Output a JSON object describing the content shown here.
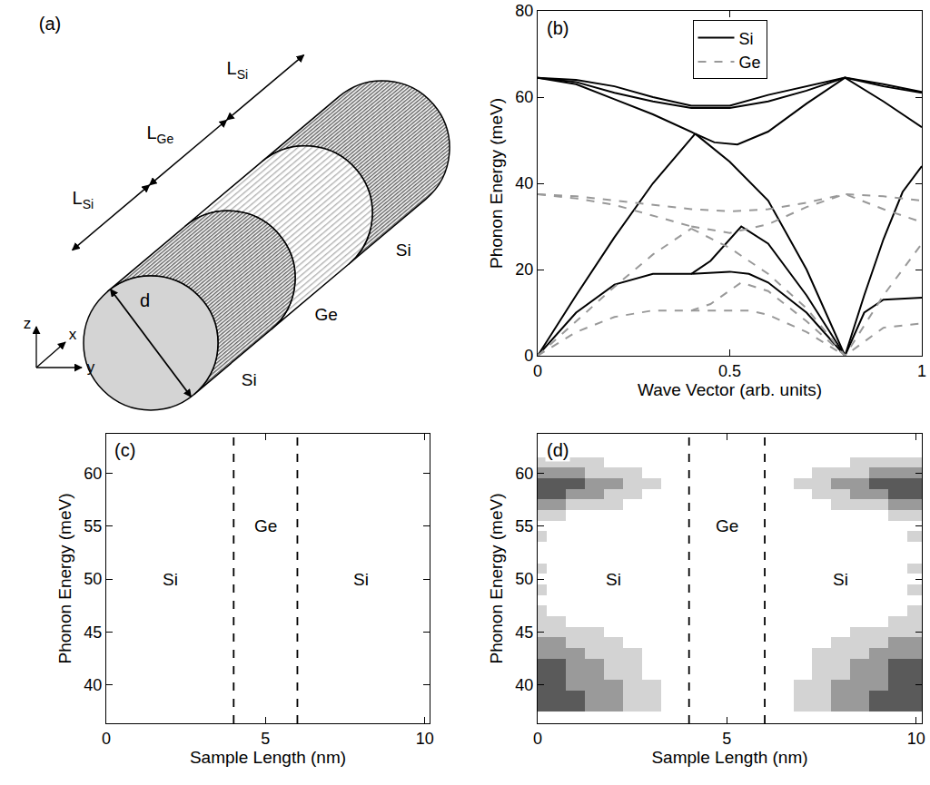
{
  "diagram": {
    "label": "(a)",
    "lengths": [
      {
        "symbol": "L",
        "subscript": "Si"
      },
      {
        "symbol": "L",
        "subscript": "Ge"
      },
      {
        "symbol": "L",
        "subscript": "Si"
      }
    ],
    "diameter": "d",
    "segments": [
      "Si",
      "Ge",
      "Si"
    ],
    "axes": [
      "z",
      "x",
      "y"
    ]
  },
  "chart_data": [
    {
      "type": "line",
      "label": "(b)",
      "xlabel": "Wave Vector (arb. units)",
      "ylabel": "Phonon Energy (meV)",
      "xlim": [
        0,
        1
      ],
      "xticks": [
        0,
        0.5,
        1
      ],
      "ylim": [
        0,
        80
      ],
      "yticks": [
        0,
        20,
        40,
        60,
        80
      ],
      "legend": "upper center",
      "series": [
        {
          "name": "Si",
          "color": "#000000",
          "line_style": "solid",
          "x": [
            0,
            0.1,
            0.2,
            0.3,
            0.4,
            0.5,
            0.6,
            0.7,
            0.8,
            0.9,
            1,
            null,
            0,
            0.1,
            0.2,
            0.3,
            0.4,
            0.5,
            0.6,
            0.7,
            0.8,
            0.9,
            1,
            null,
            0,
            0.1,
            0.2,
            0.3,
            0.41,
            null,
            0,
            0.1,
            0.2,
            0.3,
            0.41,
            null,
            0.41,
            0.46,
            0.52,
            0.6,
            0.7,
            0.8,
            0.9,
            1,
            null,
            0.41,
            0.5,
            0.6,
            0.7,
            0.8,
            0.85,
            0.9,
            0.95,
            1,
            null,
            0,
            0.1,
            0.2,
            0.3,
            0.4,
            0.45,
            0.53,
            0.6,
            0.7,
            0.8,
            0.85,
            0.9,
            1,
            null,
            0.4,
            0.5,
            0.55,
            0.6,
            0.7,
            0.8
          ],
          "values": [
            64.5,
            63.5,
            61,
            59,
            57.5,
            57.5,
            59,
            61.5,
            64.5,
            62.5,
            61,
            null,
            64.5,
            64,
            62.5,
            60,
            58,
            58,
            60.5,
            62.5,
            64.5,
            63,
            61.2,
            null,
            64.5,
            63,
            59.5,
            56,
            51.5,
            null,
            0,
            14,
            27.5,
            40,
            51.5,
            null,
            51.5,
            49.5,
            49,
            52,
            58.5,
            64.5,
            59,
            53,
            null,
            51.5,
            45,
            36,
            20,
            0,
            14,
            27,
            38,
            44,
            null,
            0,
            10,
            16.5,
            19,
            19,
            22,
            30,
            26,
            14,
            0,
            10,
            13,
            13.5,
            null,
            19,
            19.5,
            19,
            17,
            10,
            0
          ]
        },
        {
          "name": "Ge",
          "color": "#999999",
          "line_style": "dashed",
          "x": [
            0,
            0.1,
            0.2,
            0.3,
            0.4,
            0.5,
            0.6,
            0.7,
            0.8,
            0.9,
            1,
            null,
            0,
            0.1,
            0.2,
            0.3,
            0.4,
            null,
            0,
            0.1,
            0.2,
            0.3,
            0.4,
            null,
            0.4,
            0.5,
            0.6,
            0.7,
            0.8,
            0.9,
            1,
            null,
            0.4,
            0.5,
            0.6,
            0.7,
            0.8,
            0.9,
            1,
            null,
            0,
            0.1,
            0.2,
            0.3,
            0.4,
            0.45,
            0.53,
            0.6,
            0.7,
            0.8,
            0.9,
            1,
            null,
            0.4,
            0.5,
            0.55,
            0.6,
            0.7,
            0.8
          ],
          "values": [
            37.5,
            37,
            36,
            35,
            34,
            33.5,
            34,
            35.5,
            37.5,
            37,
            36,
            null,
            37.5,
            36.5,
            35,
            32.5,
            30,
            null,
            0,
            8,
            16,
            23.5,
            29.5,
            null,
            30,
            28.5,
            30.5,
            34.5,
            37.5,
            34,
            31,
            null,
            29.5,
            25,
            19,
            11,
            0,
            14,
            26,
            null,
            0,
            5.5,
            9,
            10.5,
            10.5,
            12,
            17,
            15,
            8,
            0,
            6.5,
            7.5,
            null,
            10.5,
            10.5,
            10.5,
            9.5,
            5.5,
            0
          ]
        }
      ]
    },
    {
      "type": "annotated",
      "label": "(c)",
      "xlabel": "Sample Length (nm)",
      "ylabel": "Phonon Energy (meV)",
      "xlim": [
        0,
        10.15
      ],
      "xticks": [
        0,
        5,
        10
      ],
      "ylim": [
        36.4,
        63.7
      ],
      "yticks": [
        40,
        45,
        50,
        55,
        60
      ],
      "vlines": [
        4,
        6
      ],
      "annotations": [
        {
          "text": "Si",
          "x": 2,
          "y": 50
        },
        {
          "text": "Ge",
          "x": 5,
          "y": 55
        },
        {
          "text": "Si",
          "x": 8,
          "y": 50
        }
      ]
    },
    {
      "type": "heatmap",
      "label": "(d)",
      "xlabel": "Sample Length (nm)",
      "ylabel": "Phonon Energy (meV)",
      "xlim": [
        0,
        10.15
      ],
      "xticks": [
        0,
        5,
        10
      ],
      "ylim": [
        36.4,
        63.7
      ],
      "yticks": [
        40,
        45,
        50,
        55,
        60
      ],
      "vlines": [
        4,
        6
      ],
      "annotations": [
        {
          "text": "Si",
          "x": 2,
          "y": 50
        },
        {
          "text": "Ge",
          "x": 5,
          "y": 55
        },
        {
          "text": "Si",
          "x": 8,
          "y": 50
        }
      ],
      "colors": [
        "#ffffff",
        "#d3d3d3",
        "#9a9a9a",
        "#5a5a5a"
      ],
      "zlim": [
        0,
        3
      ],
      "x": [
        0,
        0.5,
        1,
        1.5,
        2,
        2.5,
        3,
        3.5,
        4,
        4.5,
        5,
        5.5,
        6,
        6.5,
        7,
        7.5,
        8,
        8.5,
        9,
        9.5,
        10
      ],
      "y": [
        38,
        39,
        40,
        41,
        42,
        43,
        44,
        45,
        46,
        47,
        48,
        49,
        50,
        51,
        52,
        53,
        54,
        55,
        56,
        57,
        58,
        59,
        60,
        61,
        62
      ],
      "z": [
        [
          3,
          3,
          3,
          2,
          2,
          1,
          1,
          0,
          0,
          0,
          0,
          0,
          0,
          0,
          1,
          1,
          2,
          2,
          3,
          3,
          3
        ],
        [
          3,
          3,
          3,
          2,
          2,
          1,
          1,
          0,
          0,
          0,
          0,
          0,
          0,
          0,
          1,
          1,
          2,
          2,
          3,
          3,
          3
        ],
        [
          3,
          3,
          2,
          2,
          2,
          1,
          1,
          0,
          0,
          0,
          0,
          0,
          0,
          0,
          1,
          1,
          2,
          2,
          2,
          3,
          3
        ],
        [
          3,
          3,
          2,
          2,
          1,
          1,
          0,
          0,
          0,
          0,
          0,
          0,
          0,
          0,
          0,
          1,
          1,
          2,
          2,
          3,
          3
        ],
        [
          3,
          3,
          2,
          2,
          1,
          1,
          0,
          0,
          0,
          0,
          0,
          0,
          0,
          0,
          0,
          1,
          1,
          2,
          2,
          3,
          3
        ],
        [
          2,
          2,
          2,
          1,
          1,
          1,
          0,
          0,
          0,
          0,
          0,
          0,
          0,
          0,
          0,
          1,
          1,
          1,
          2,
          2,
          2
        ],
        [
          2,
          2,
          1,
          1,
          1,
          0,
          0,
          0,
          0,
          0,
          0,
          0,
          0,
          0,
          0,
          0,
          1,
          1,
          1,
          2,
          2
        ],
        [
          1,
          1,
          1,
          1,
          0,
          0,
          0,
          0,
          0,
          0,
          0,
          0,
          0,
          0,
          0,
          0,
          0,
          1,
          1,
          1,
          1
        ],
        [
          1,
          1,
          0,
          0,
          0,
          0,
          0,
          0,
          0,
          0,
          0,
          0,
          0,
          0,
          0,
          0,
          0,
          0,
          0,
          1,
          1
        ],
        [
          1,
          0,
          0,
          0,
          0,
          0,
          0,
          0,
          0,
          0,
          0,
          0,
          0,
          0,
          0,
          0,
          0,
          0,
          0,
          0,
          1
        ],
        [
          0,
          0,
          0,
          0,
          0,
          0,
          0,
          0,
          0,
          0,
          0,
          0,
          0,
          0,
          0,
          0,
          0,
          0,
          0,
          0,
          0
        ],
        [
          1,
          0,
          0,
          0,
          0,
          0,
          0,
          0,
          0,
          0,
          0,
          0,
          0,
          0,
          0,
          0,
          0,
          0,
          0,
          0,
          1
        ],
        [
          0,
          0,
          0,
          0,
          0,
          0,
          0,
          0,
          0,
          0,
          0,
          0,
          0,
          0,
          0,
          0,
          0,
          0,
          0,
          0,
          0
        ],
        [
          1,
          0,
          0,
          0,
          0,
          0,
          0,
          0,
          0,
          0,
          0,
          0,
          0,
          0,
          0,
          0,
          0,
          0,
          0,
          0,
          1
        ],
        [
          0,
          0,
          0,
          0,
          0,
          0,
          0,
          0,
          0,
          0,
          0,
          0,
          0,
          0,
          0,
          0,
          0,
          0,
          0,
          0,
          0
        ],
        [
          0,
          0,
          0,
          0,
          0,
          0,
          0,
          0,
          0,
          0,
          0,
          0,
          0,
          0,
          0,
          0,
          0,
          0,
          0,
          0,
          0
        ],
        [
          1,
          0,
          0,
          0,
          0,
          0,
          0,
          0,
          0,
          0,
          0,
          0,
          0,
          0,
          0,
          0,
          0,
          0,
          0,
          0,
          1
        ],
        [
          0,
          0,
          0,
          0,
          0,
          0,
          0,
          0,
          0,
          0,
          0,
          0,
          0,
          0,
          0,
          0,
          0,
          0,
          0,
          0,
          0
        ],
        [
          1,
          1,
          0,
          0,
          0,
          0,
          0,
          0,
          0,
          0,
          0,
          0,
          0,
          0,
          0,
          0,
          0,
          0,
          0,
          1,
          1
        ],
        [
          2,
          2,
          1,
          1,
          1,
          0,
          0,
          0,
          0,
          0,
          0,
          0,
          0,
          0,
          0,
          0,
          1,
          1,
          1,
          2,
          2
        ],
        [
          3,
          3,
          2,
          2,
          1,
          1,
          0,
          0,
          0,
          0,
          0,
          0,
          0,
          0,
          0,
          1,
          1,
          2,
          2,
          3,
          3
        ],
        [
          3,
          3,
          3,
          2,
          2,
          1,
          1,
          0,
          0,
          0,
          0,
          0,
          0,
          0,
          1,
          1,
          2,
          2,
          3,
          3,
          3
        ],
        [
          2,
          2,
          2,
          1,
          1,
          1,
          0,
          0,
          0,
          0,
          0,
          0,
          0,
          0,
          0,
          1,
          1,
          1,
          2,
          2,
          2
        ],
        [
          1,
          1,
          1,
          1,
          0,
          0,
          0,
          0,
          0,
          0,
          0,
          0,
          0,
          0,
          0,
          0,
          0,
          1,
          1,
          1,
          1
        ],
        [
          0,
          0,
          0,
          0,
          0,
          0,
          0,
          0,
          0,
          0,
          0,
          0,
          0,
          0,
          0,
          0,
          0,
          0,
          0,
          0,
          0
        ]
      ]
    }
  ]
}
